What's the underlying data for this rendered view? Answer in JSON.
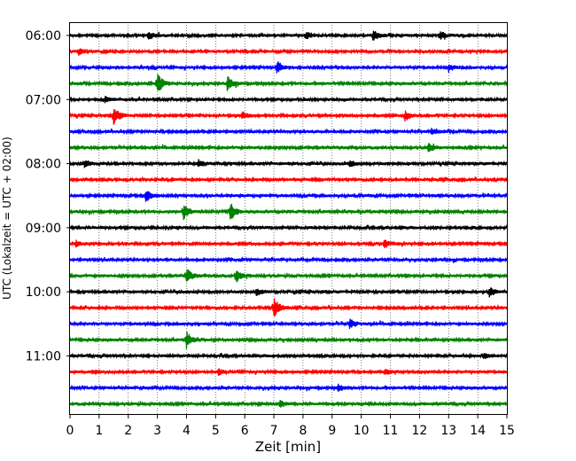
{
  "chart_data": {
    "type": "line",
    "subtype": "helicorder",
    "xlabel": "Zeit  [min]",
    "ylabel": "UTC (Lokalzeit = UTC + 02:00)",
    "xlim": [
      0,
      15
    ],
    "x_ticks": [
      "0",
      "1",
      "2",
      "3",
      "4",
      "5",
      "6",
      "7",
      "8",
      "9",
      "10",
      "11",
      "12",
      "13",
      "14",
      "15"
    ],
    "y_ticks": [
      "06:00",
      "07:00",
      "08:00",
      "09:00",
      "10:00",
      "11:00"
    ],
    "grid": "vertical dotted lines at each minute",
    "trace_colors": [
      "#000000",
      "#ff0000",
      "#0000ff",
      "#008000"
    ],
    "trace_times": [
      "06:00",
      "06:15",
      "06:30",
      "06:45",
      "07:00",
      "07:15",
      "07:30",
      "07:45",
      "08:00",
      "08:15",
      "08:30",
      "08:45",
      "09:00",
      "09:15",
      "09:30",
      "09:45",
      "10:00",
      "10:15",
      "10:30",
      "10:45",
      "11:00",
      "11:15",
      "11:30",
      "11:45"
    ],
    "events": [
      {
        "trace": "06:00",
        "x": 2.7,
        "amp": 0.25
      },
      {
        "trace": "06:00",
        "x": 8.1,
        "amp": 0.25
      },
      {
        "trace": "06:00",
        "x": 10.4,
        "amp": 0.35
      },
      {
        "trace": "06:00",
        "x": 12.7,
        "amp": 0.25
      },
      {
        "trace": "06:15",
        "x": 0.3,
        "amp": 0.2
      },
      {
        "trace": "06:30",
        "x": 7.1,
        "amp": 0.45
      },
      {
        "trace": "06:30",
        "x": 13.0,
        "amp": 0.2
      },
      {
        "trace": "06:45",
        "x": 3.0,
        "amp": 0.65
      },
      {
        "trace": "06:45",
        "x": 5.4,
        "amp": 0.5
      },
      {
        "trace": "07:00",
        "x": 1.2,
        "amp": 0.2
      },
      {
        "trace": "07:15",
        "x": 1.5,
        "amp": 0.55
      },
      {
        "trace": "07:15",
        "x": 5.9,
        "amp": 0.25
      },
      {
        "trace": "07:15",
        "x": 11.5,
        "amp": 0.3
      },
      {
        "trace": "07:30",
        "x": 12.4,
        "amp": 0.2
      },
      {
        "trace": "07:45",
        "x": 12.3,
        "amp": 0.3
      },
      {
        "trace": "08:00",
        "x": 0.5,
        "amp": 0.25
      },
      {
        "trace": "08:00",
        "x": 4.4,
        "amp": 0.25
      },
      {
        "trace": "08:00",
        "x": 9.6,
        "amp": 0.2
      },
      {
        "trace": "08:30",
        "x": 2.6,
        "amp": 0.45
      },
      {
        "trace": "08:45",
        "x": 3.9,
        "amp": 0.5
      },
      {
        "trace": "08:45",
        "x": 5.5,
        "amp": 0.65
      },
      {
        "trace": "09:15",
        "x": 0.2,
        "amp": 0.2
      },
      {
        "trace": "09:15",
        "x": 10.8,
        "amp": 0.3
      },
      {
        "trace": "09:45",
        "x": 4.0,
        "amp": 0.45
      },
      {
        "trace": "09:45",
        "x": 5.7,
        "amp": 0.45
      },
      {
        "trace": "10:00",
        "x": 6.4,
        "amp": 0.2
      },
      {
        "trace": "10:00",
        "x": 14.4,
        "amp": 0.3
      },
      {
        "trace": "10:15",
        "x": 7.0,
        "amp": 0.7
      },
      {
        "trace": "10:30",
        "x": 9.6,
        "amp": 0.3
      },
      {
        "trace": "10:45",
        "x": 4.0,
        "amp": 0.5
      },
      {
        "trace": "11:00",
        "x": 14.2,
        "amp": 0.2
      },
      {
        "trace": "11:15",
        "x": 5.1,
        "amp": 0.2
      },
      {
        "trace": "11:15",
        "x": 10.8,
        "amp": 0.25
      },
      {
        "trace": "11:30",
        "x": 9.2,
        "amp": 0.25
      },
      {
        "trace": "11:45",
        "x": 7.2,
        "amp": 0.2
      }
    ]
  }
}
